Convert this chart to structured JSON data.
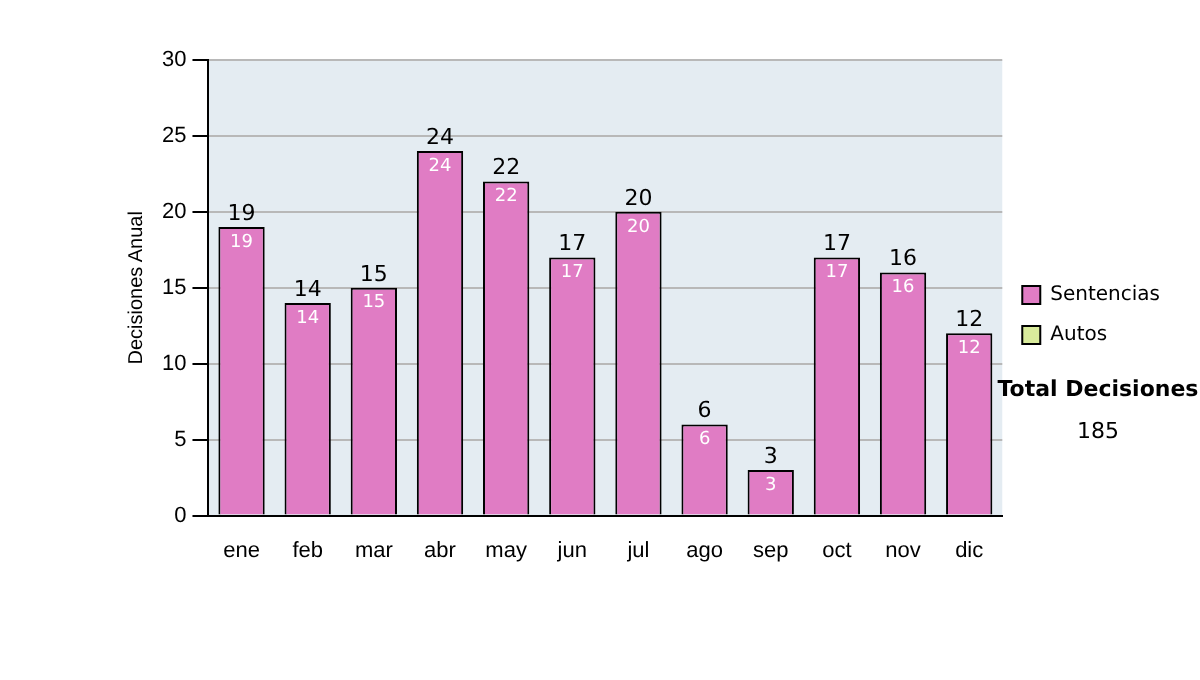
{
  "chart_data": {
    "type": "bar",
    "ylabel": "Decisiones Anual",
    "categories": [
      "ene",
      "feb",
      "mar",
      "abr",
      "may",
      "jun",
      "jul",
      "ago",
      "sep",
      "oct",
      "nov",
      "dic"
    ],
    "series": [
      {
        "name": "Sentencias",
        "color": "#e07cc4",
        "values": [
          19,
          14,
          15,
          24,
          22,
          17,
          20,
          6,
          3,
          17,
          16,
          12
        ],
        "value_labels": [
          "19",
          "14",
          "15",
          "24",
          "22",
          "17",
          "20",
          "6",
          "3",
          "17",
          "16",
          "12"
        ]
      },
      {
        "name": "Autos",
        "color": "#d9eb9c",
        "values": [
          0,
          0,
          0,
          0,
          0,
          0,
          0,
          0,
          0,
          0,
          0,
          0
        ]
      }
    ],
    "stacked": true,
    "totals": [
      "19",
      "14",
      "15",
      "24",
      "22",
      "17",
      "20",
      "6",
      "3",
      "17",
      "16",
      "12"
    ],
    "ylim": [
      0,
      30
    ],
    "yticks": [
      0,
      5,
      10,
      15,
      20,
      25,
      30
    ],
    "grid": "y",
    "legend": "right",
    "annotations": [
      "Total Decisiones",
      "185"
    ]
  }
}
